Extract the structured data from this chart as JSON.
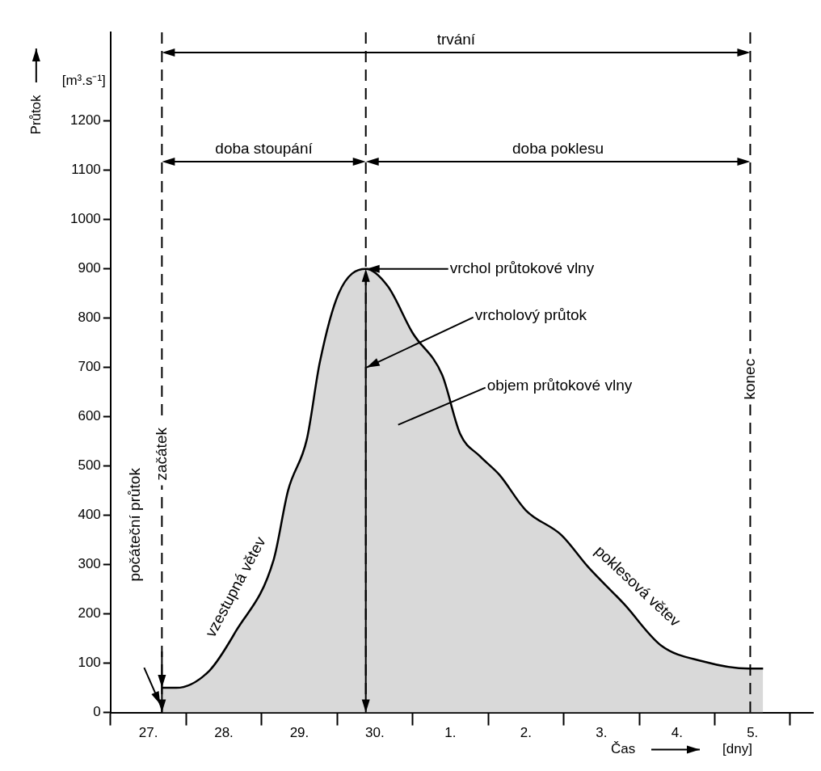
{
  "chart_data": {
    "type": "area",
    "xlabel": "Čas",
    "ylabel": "Průtok",
    "series": [
      {
        "color": "#000000",
        "x": [
          "--04-27T16:19",
          "--04-27T20:53",
          "--04-28T07:26",
          "--04-28T15:50",
          "--04-29T03:50",
          "--04-29T08:24",
          "--04-29T14:24",
          "--04-29T18:29",
          "--04-30T00:29",
          "--04-30T09:07",
          "--04-30T16:05",
          "--05-01T00:00",
          "--05-01T09:22",
          "--05-01T15:07",
          "--05-01T21:22",
          "--05-02T03:36",
          "--05-02T12:00",
          "--05-02T23:17",
          "--05-03T07:41",
          "--05-03T19:12",
          "--05-04T06:58",
          "--05-04T20:10",
          "--05-05T10:48",
          "--05-05T15:22"
        ],
        "values": [
          50,
          50,
          85,
          165,
          310,
          450,
          555,
          710,
          850,
          900,
          865,
          770,
          685,
          565,
          520,
          482,
          410,
          360,
          296,
          220,
          136,
          104,
          89,
          89
        ]
      }
    ],
    "xlim": [
      "--04-27",
      "--05-06T07:12"
    ],
    "xticks": [
      {
        "value": "--04-27",
        "label": null
      },
      {
        "value": "--04-27T12:00",
        "label": "27."
      },
      {
        "value": "--04-28",
        "label": null
      },
      {
        "value": "--04-28T12:00",
        "label": "28."
      },
      {
        "value": "--04-29",
        "label": null
      },
      {
        "value": "--04-29T12:00",
        "label": "29."
      },
      {
        "value": "--04-30",
        "label": null
      },
      {
        "value": "--04-30T12:00",
        "label": "30."
      },
      {
        "value": "--05-01",
        "label": null
      },
      {
        "value": "--05-01T12:00",
        "label": "1."
      },
      {
        "value": "--05-02",
        "label": null
      },
      {
        "value": "--05-02T12:00",
        "label": "2."
      },
      {
        "value": "--05-03",
        "label": null
      },
      {
        "value": "--05-03T12:00",
        "label": "3."
      },
      {
        "value": "--05-04",
        "label": null
      },
      {
        "value": "--05-04T12:00",
        "label": "4."
      },
      {
        "value": "--05-05",
        "label": null
      },
      {
        "value": "--05-05T12:00",
        "label": "5."
      },
      {
        "value": "--05-06",
        "label": null
      }
    ],
    "ylim": [
      0,
      1380
    ],
    "yticks": [
      0,
      100,
      200,
      300,
      400,
      500,
      600,
      700,
      800,
      900,
      1000,
      1100,
      1200
    ],
    "grid": false,
    "legend": false,
    "marker": "none",
    "ref_lines": [
      {
        "axis": "x",
        "value": "--04-27T16:19",
        "label": "začátek",
        "color": "#000000",
        "line_style": "dashed"
      },
      {
        "axis": "x",
        "value": "--04-30T09:07",
        "label": null,
        "color": "#000000",
        "line_style": "dashed"
      },
      {
        "axis": "x",
        "value": "--05-05T11:17",
        "label": "konec",
        "color": "#000000",
        "line_style": "dashed"
      }
    ],
    "annotations": [
      "trvání",
      "doba stoupání",
      "doba poklesu",
      {
        "text": "vrchol průtokové vlny",
        "x": "--04-30T09:07",
        "y": 900
      },
      {
        "text": "vrcholový průtok",
        "x": "--04-30T09:07",
        "y": 700
      },
      "objem průtokové vlny",
      "vzestupná větev",
      "poklesová větev",
      "počáteční průtok",
      "[m³.s⁻¹]",
      "[dny]"
    ]
  }
}
